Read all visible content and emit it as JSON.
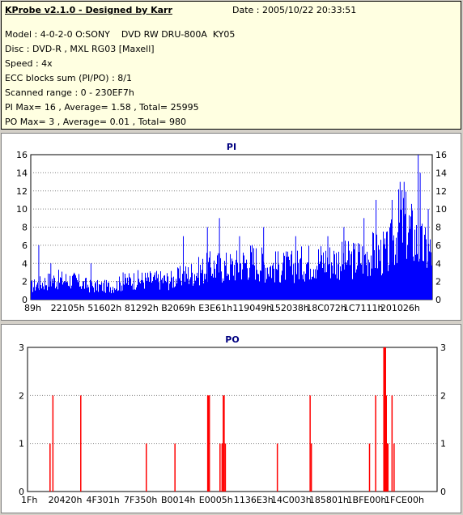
{
  "header": {
    "title": "KProbe v2.1.0 - Designed by Karr",
    "date": "Date : 2005/10/22 20:33:51",
    "lines": [
      "Model : 4-0-2-0 O:SONY    DVD RW DRU-800A  KY05",
      "Disc : DVD-R , MXL RG03 [Maxell]",
      "Speed : 4x",
      "ECC blocks sum (PI/PO) : 8/1",
      "Scanned range : 0 - 230EF7h",
      "PI Max= 16 , Average= 1.58 , Total= 25995",
      "PO Max= 3 , Average= 0.01 , Total= 980"
    ]
  },
  "chart_data": [
    {
      "type": "bar",
      "title": "PI",
      "color": "#0000ff",
      "ylim": [
        0,
        16
      ],
      "yticks": [
        0,
        2,
        4,
        6,
        8,
        10,
        12,
        14,
        16
      ],
      "xticks": [
        "89h",
        "22105h",
        "51602h",
        "81292h",
        "B2069h",
        "E3E61h",
        "119049h",
        "152038h",
        "18C072h",
        "1C7111h",
        "201026h"
      ],
      "xlim": [
        0,
        1
      ],
      "envelope": [
        {
          "x": 0.0,
          "y": 2
        },
        {
          "x": 0.05,
          "y": 3
        },
        {
          "x": 0.1,
          "y": 3
        },
        {
          "x": 0.15,
          "y": 2
        },
        {
          "x": 0.2,
          "y": 2
        },
        {
          "x": 0.25,
          "y": 3
        },
        {
          "x": 0.3,
          "y": 3
        },
        {
          "x": 0.35,
          "y": 3
        },
        {
          "x": 0.4,
          "y": 4
        },
        {
          "x": 0.45,
          "y": 5
        },
        {
          "x": 0.5,
          "y": 5
        },
        {
          "x": 0.55,
          "y": 6
        },
        {
          "x": 0.6,
          "y": 5
        },
        {
          "x": 0.65,
          "y": 5
        },
        {
          "x": 0.7,
          "y": 6
        },
        {
          "x": 0.75,
          "y": 6
        },
        {
          "x": 0.8,
          "y": 6
        },
        {
          "x": 0.85,
          "y": 7
        },
        {
          "x": 0.89,
          "y": 7
        },
        {
          "x": 0.92,
          "y": 12
        },
        {
          "x": 0.95,
          "y": 10
        },
        {
          "x": 0.97,
          "y": 8
        },
        {
          "x": 1.0,
          "y": 7
        }
      ],
      "spikes": [
        {
          "x": 0.02,
          "y": 6
        },
        {
          "x": 0.05,
          "y": 4
        },
        {
          "x": 0.15,
          "y": 4
        },
        {
          "x": 0.23,
          "y": 3
        },
        {
          "x": 0.38,
          "y": 7
        },
        {
          "x": 0.44,
          "y": 8
        },
        {
          "x": 0.47,
          "y": 9
        },
        {
          "x": 0.52,
          "y": 7
        },
        {
          "x": 0.58,
          "y": 8
        },
        {
          "x": 0.66,
          "y": 7
        },
        {
          "x": 0.74,
          "y": 7
        },
        {
          "x": 0.78,
          "y": 8
        },
        {
          "x": 0.83,
          "y": 9
        },
        {
          "x": 0.86,
          "y": 11
        },
        {
          "x": 0.9,
          "y": 11
        },
        {
          "x": 0.92,
          "y": 13
        },
        {
          "x": 0.93,
          "y": 13
        },
        {
          "x": 0.965,
          "y": 16
        },
        {
          "x": 0.97,
          "y": 14
        },
        {
          "x": 0.99,
          "y": 10
        }
      ]
    },
    {
      "type": "bar",
      "title": "PO",
      "color": "#ff0000",
      "ylim": [
        0,
        3
      ],
      "yticks": [
        0,
        1,
        2,
        3
      ],
      "xticks": [
        "1Fh",
        "20420h",
        "4F301h",
        "7F350h",
        "B0014h",
        "E0005h",
        "1136E3h",
        "14C003h",
        "185801h",
        "1BFE00h",
        "1FCE00h"
      ],
      "xlim": [
        0,
        1
      ],
      "bars": [
        {
          "x": 0.055,
          "y": 1
        },
        {
          "x": 0.062,
          "y": 2
        },
        {
          "x": 0.13,
          "y": 2
        },
        {
          "x": 0.29,
          "y": 1
        },
        {
          "x": 0.36,
          "y": 1
        },
        {
          "x": 0.44,
          "y": 2
        },
        {
          "x": 0.442,
          "y": 2
        },
        {
          "x": 0.444,
          "y": 2
        },
        {
          "x": 0.47,
          "y": 1
        },
        {
          "x": 0.475,
          "y": 1
        },
        {
          "x": 0.478,
          "y": 2
        },
        {
          "x": 0.48,
          "y": 2
        },
        {
          "x": 0.483,
          "y": 1
        },
        {
          "x": 0.61,
          "y": 1
        },
        {
          "x": 0.69,
          "y": 2
        },
        {
          "x": 0.693,
          "y": 1
        },
        {
          "x": 0.835,
          "y": 1
        },
        {
          "x": 0.85,
          "y": 2
        },
        {
          "x": 0.87,
          "y": 3
        },
        {
          "x": 0.872,
          "y": 3
        },
        {
          "x": 0.874,
          "y": 3
        },
        {
          "x": 0.876,
          "y": 2
        },
        {
          "x": 0.878,
          "y": 1
        },
        {
          "x": 0.88,
          "y": 1
        },
        {
          "x": 0.89,
          "y": 2
        },
        {
          "x": 0.895,
          "y": 1
        }
      ]
    }
  ]
}
